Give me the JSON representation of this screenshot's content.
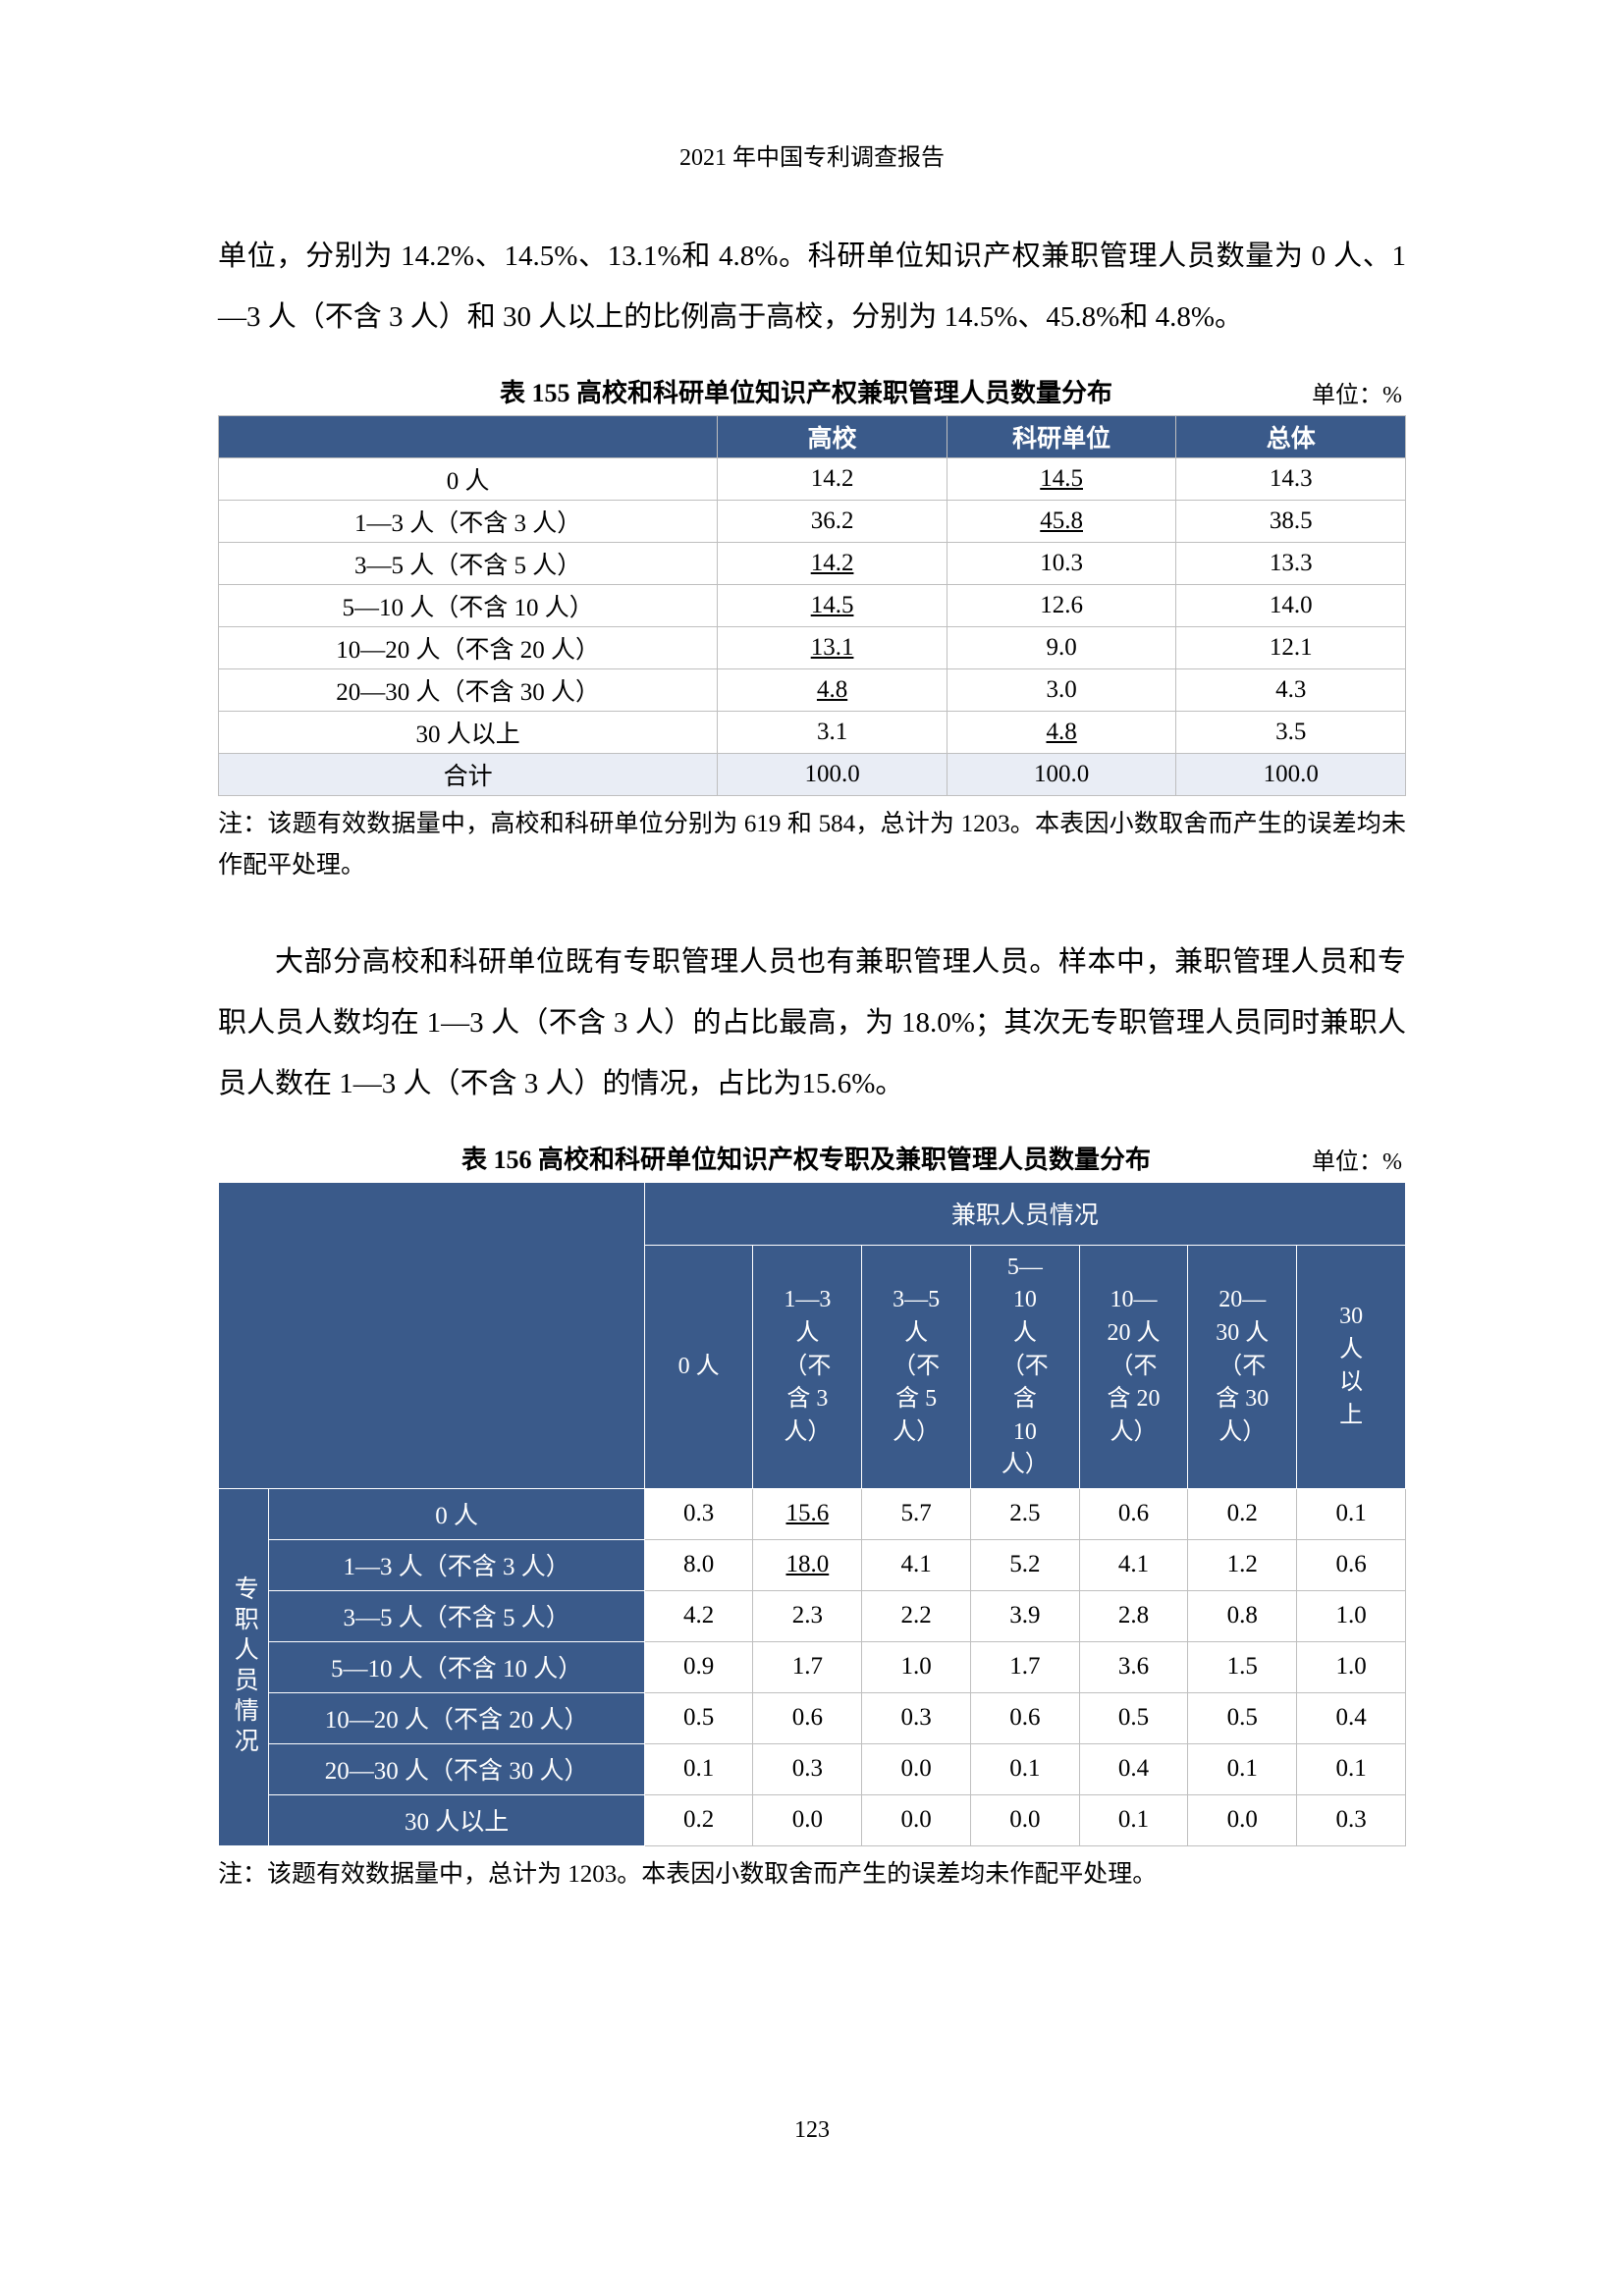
{
  "header": "2021 年中国专利调查报告",
  "page_number": "123",
  "para1": "单位，分别为 14.2%、14.5%、13.1%和 4.8%。科研单位知识产权兼职管理人员数量为 0 人、1—3 人（不含 3 人）和 30 人以上的比例高于高校，分别为 14.5%、45.8%和 4.8%。",
  "table155": {
    "caption": "表 155  高校和科研单位知识产权兼职管理人员数量分布",
    "unit": "单位：%",
    "cols": [
      "高校",
      "科研单位",
      "总体"
    ],
    "rows": [
      {
        "label": "0 人",
        "v": [
          "14.2",
          "14.5",
          "14.3"
        ],
        "ul": [
          false,
          true,
          false
        ]
      },
      {
        "label": "1—3 人（不含 3 人）",
        "v": [
          "36.2",
          "45.8",
          "38.5"
        ],
        "ul": [
          false,
          true,
          false
        ]
      },
      {
        "label": "3—5 人（不含 5 人）",
        "v": [
          "14.2",
          "10.3",
          "13.3"
        ],
        "ul": [
          true,
          false,
          false
        ]
      },
      {
        "label": "5—10 人（不含 10 人）",
        "v": [
          "14.5",
          "12.6",
          "14.0"
        ],
        "ul": [
          true,
          false,
          false
        ]
      },
      {
        "label": "10—20 人（不含 20 人）",
        "v": [
          "13.1",
          "9.0",
          "12.1"
        ],
        "ul": [
          true,
          false,
          false
        ]
      },
      {
        "label": "20—30 人（不含 30 人）",
        "v": [
          "4.8",
          "3.0",
          "4.3"
        ],
        "ul": [
          true,
          false,
          false
        ]
      },
      {
        "label": "30 人以上",
        "v": [
          "3.1",
          "4.8",
          "3.5"
        ],
        "ul": [
          false,
          true,
          false
        ]
      }
    ],
    "sum": {
      "label": "合计",
      "v": [
        "100.0",
        "100.0",
        "100.0"
      ]
    },
    "note": "注：该题有效数据量中，高校和科研单位分别为 619 和 584，总计为 1203。本表因小数取舍而产生的误差均未作配平处理。"
  },
  "para2": "大部分高校和科研单位既有专职管理人员也有兼职管理人员。样本中，兼职管理人员和专职人员人数均在 1—3 人（不含 3 人）的占比最高，为 18.0%；其次无专职管理人员同时兼职人员人数在 1—3 人（不含 3 人）的情况，占比为15.6%。",
  "table156": {
    "caption": "表 156  高校和科研单位知识产权专职及兼职管理人员数量分布",
    "unit": "单位：%",
    "top_group": "兼职人员情况",
    "side_group": "专职人员情况",
    "cols": [
      "0 人",
      "1—3\n人\n（不\n含 3\n人）",
      "3—5\n人\n（不\n含 5\n人）",
      "5—\n10\n人\n（不\n含\n10\n人）",
      "10—\n20 人\n（不\n含 20\n人）",
      "20—\n30 人\n（不\n含 30\n人）",
      "30\n人\n以\n上"
    ],
    "rows": [
      {
        "label": "0 人",
        "v": [
          "0.3",
          "15.6",
          "5.7",
          "2.5",
          "0.6",
          "0.2",
          "0.1"
        ],
        "ul": [
          false,
          true,
          false,
          false,
          false,
          false,
          false
        ]
      },
      {
        "label": "1—3 人（不含 3 人）",
        "v": [
          "8.0",
          "18.0",
          "4.1",
          "5.2",
          "4.1",
          "1.2",
          "0.6"
        ],
        "ul": [
          false,
          true,
          false,
          false,
          false,
          false,
          false
        ]
      },
      {
        "label": "3—5 人（不含 5 人）",
        "v": [
          "4.2",
          "2.3",
          "2.2",
          "3.9",
          "2.8",
          "0.8",
          "1.0"
        ],
        "ul": [
          false,
          false,
          false,
          false,
          false,
          false,
          false
        ]
      },
      {
        "label": "5—10 人（不含 10 人）",
        "v": [
          "0.9",
          "1.7",
          "1.0",
          "1.7",
          "3.6",
          "1.5",
          "1.0"
        ],
        "ul": [
          false,
          false,
          false,
          false,
          false,
          false,
          false
        ]
      },
      {
        "label": "10—20 人（不含 20 人）",
        "v": [
          "0.5",
          "0.6",
          "0.3",
          "0.6",
          "0.5",
          "0.5",
          "0.4"
        ],
        "ul": [
          false,
          false,
          false,
          false,
          false,
          false,
          false
        ]
      },
      {
        "label": "20—30 人（不含 30 人）",
        "v": [
          "0.1",
          "0.3",
          "0.0",
          "0.1",
          "0.4",
          "0.1",
          "0.1"
        ],
        "ul": [
          false,
          false,
          false,
          false,
          false,
          false,
          false
        ]
      },
      {
        "label": "30 人以上",
        "v": [
          "0.2",
          "0.0",
          "0.0",
          "0.0",
          "0.1",
          "0.0",
          "0.3"
        ],
        "ul": [
          false,
          false,
          false,
          false,
          false,
          false,
          false
        ]
      }
    ],
    "note": "注：该题有效数据量中，总计为 1203。本表因小数取舍而产生的误差均未作配平处理。"
  }
}
